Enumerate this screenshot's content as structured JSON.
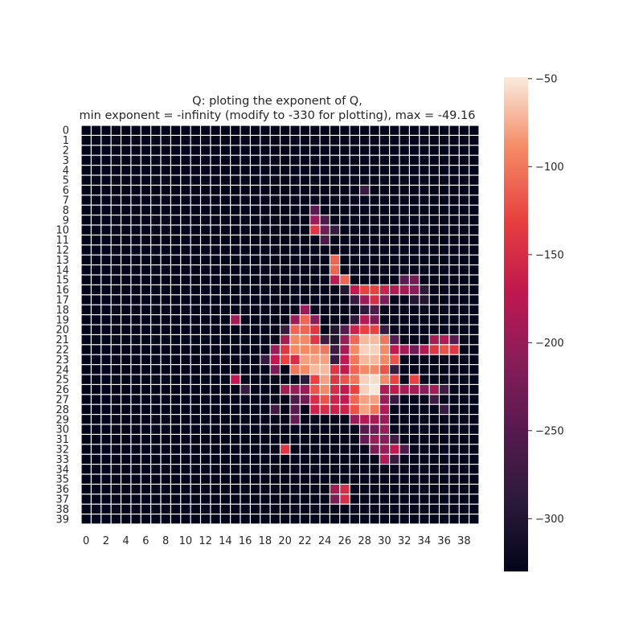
{
  "chart_data": {
    "type": "heatmap",
    "title_lines": [
      "Q: ploting the exponent of Q,",
      "min exponent = -infinity (modify to -330 for plotting), max = -49.16"
    ],
    "xlabel": "",
    "ylabel": "",
    "rows": 40,
    "cols": 40,
    "x_tick_labels": [
      "0",
      "2",
      "4",
      "6",
      "8",
      "10",
      "12",
      "14",
      "16",
      "18",
      "20",
      "22",
      "24",
      "26",
      "28",
      "30",
      "32",
      "34",
      "36",
      "38"
    ],
    "y_tick_labels": [
      "0",
      "1",
      "2",
      "3",
      "4",
      "5",
      "6",
      "7",
      "8",
      "9",
      "10",
      "11",
      "12",
      "13",
      "14",
      "15",
      "16",
      "17",
      "18",
      "19",
      "20",
      "21",
      "22",
      "23",
      "24",
      "25",
      "26",
      "27",
      "28",
      "29",
      "30",
      "31",
      "32",
      "33",
      "34",
      "35",
      "36",
      "37",
      "38",
      "39"
    ],
    "fill_value": -330,
    "vmin": -330,
    "vmax": -49.16,
    "colorbar": {
      "ticks": [
        -50,
        -100,
        -150,
        -200,
        -250,
        -300
      ],
      "tick_labels": [
        "−50",
        "−100",
        "−150",
        "−200",
        "−250",
        "−300"
      ],
      "colormap": "rocket"
    },
    "grid_line_color": "#ffffff",
    "cells": [
      [
        6,
        28,
        -280
      ],
      [
        8,
        23,
        -250
      ],
      [
        9,
        23,
        -200
      ],
      [
        9,
        24,
        -260
      ],
      [
        10,
        23,
        -140
      ],
      [
        10,
        24,
        -230
      ],
      [
        10,
        25,
        -280
      ],
      [
        11,
        24,
        -260
      ],
      [
        13,
        25,
        -110
      ],
      [
        14,
        25,
        -110
      ],
      [
        15,
        25,
        -170
      ],
      [
        15,
        26,
        -110
      ],
      [
        15,
        32,
        -250
      ],
      [
        15,
        33,
        -230
      ],
      [
        16,
        26,
        -300
      ],
      [
        16,
        27,
        -170
      ],
      [
        16,
        28,
        -130
      ],
      [
        16,
        29,
        -130
      ],
      [
        16,
        30,
        -160
      ],
      [
        16,
        31,
        -180
      ],
      [
        16,
        32,
        -190
      ],
      [
        16,
        33,
        -210
      ],
      [
        16,
        34,
        -290
      ],
      [
        17,
        27,
        -280
      ],
      [
        17,
        28,
        -200
      ],
      [
        17,
        29,
        -150
      ],
      [
        17,
        30,
        -220
      ],
      [
        17,
        33,
        -300
      ],
      [
        17,
        34,
        -300
      ],
      [
        18,
        22,
        -200
      ],
      [
        18,
        28,
        -290
      ],
      [
        18,
        29,
        -260
      ],
      [
        19,
        15,
        -190
      ],
      [
        19,
        21,
        -200
      ],
      [
        19,
        22,
        -110
      ],
      [
        19,
        23,
        -210
      ],
      [
        19,
        27,
        -290
      ],
      [
        19,
        28,
        -180
      ],
      [
        19,
        29,
        -220
      ],
      [
        20,
        20,
        -280
      ],
      [
        20,
        21,
        -110
      ],
      [
        20,
        22,
        -110
      ],
      [
        20,
        23,
        -140
      ],
      [
        20,
        25,
        -300
      ],
      [
        20,
        26,
        -250
      ],
      [
        20,
        27,
        -160
      ],
      [
        20,
        28,
        -130
      ],
      [
        20,
        29,
        -130
      ],
      [
        20,
        30,
        -280
      ],
      [
        21,
        20,
        -190
      ],
      [
        21,
        21,
        -90
      ],
      [
        21,
        22,
        -90
      ],
      [
        21,
        23,
        -140
      ],
      [
        21,
        24,
        -270
      ],
      [
        21,
        25,
        -300
      ],
      [
        21,
        26,
        -200
      ],
      [
        21,
        27,
        -110
      ],
      [
        21,
        28,
        -70
      ],
      [
        21,
        29,
        -70
      ],
      [
        21,
        30,
        -100
      ],
      [
        21,
        31,
        -250
      ],
      [
        21,
        35,
        -190
      ],
      [
        21,
        36,
        -180
      ],
      [
        21,
        37,
        -250
      ],
      [
        22,
        19,
        -200
      ],
      [
        22,
        20,
        -140
      ],
      [
        22,
        21,
        -90
      ],
      [
        22,
        22,
        -90
      ],
      [
        22,
        23,
        -90
      ],
      [
        22,
        24,
        -100
      ],
      [
        22,
        25,
        -270
      ],
      [
        22,
        26,
        -190
      ],
      [
        22,
        27,
        -90
      ],
      [
        22,
        28,
        -60
      ],
      [
        22,
        29,
        -60
      ],
      [
        22,
        30,
        -90
      ],
      [
        22,
        31,
        -170
      ],
      [
        22,
        32,
        -190
      ],
      [
        22,
        33,
        -230
      ],
      [
        22,
        34,
        -180
      ],
      [
        22,
        35,
        -140
      ],
      [
        22,
        36,
        -120
      ],
      [
        22,
        37,
        -140
      ],
      [
        23,
        18,
        -280
      ],
      [
        23,
        19,
        -170
      ],
      [
        23,
        20,
        -130
      ],
      [
        23,
        21,
        -150
      ],
      [
        23,
        22,
        -80
      ],
      [
        23,
        23,
        -80
      ],
      [
        23,
        24,
        -80
      ],
      [
        23,
        25,
        -280
      ],
      [
        23,
        26,
        -170
      ],
      [
        23,
        27,
        -100
      ],
      [
        23,
        28,
        -70
      ],
      [
        23,
        29,
        -70
      ],
      [
        23,
        30,
        -90
      ],
      [
        23,
        31,
        -120
      ],
      [
        24,
        19,
        -220
      ],
      [
        24,
        21,
        -100
      ],
      [
        24,
        22,
        -90
      ],
      [
        24,
        23,
        -70
      ],
      [
        24,
        24,
        -70
      ],
      [
        24,
        25,
        -140
      ],
      [
        24,
        26,
        -170
      ],
      [
        24,
        27,
        -110
      ],
      [
        24,
        28,
        -90
      ],
      [
        24,
        29,
        -90
      ],
      [
        24,
        30,
        -120
      ],
      [
        24,
        31,
        -280
      ],
      [
        25,
        15,
        -170
      ],
      [
        25,
        22,
        -290
      ],
      [
        25,
        23,
        -130
      ],
      [
        25,
        24,
        -80
      ],
      [
        25,
        25,
        -140
      ],
      [
        25,
        26,
        -120
      ],
      [
        25,
        27,
        -100
      ],
      [
        25,
        28,
        -60
      ],
      [
        25,
        29,
        -55
      ],
      [
        25,
        30,
        -90
      ],
      [
        25,
        31,
        -130
      ],
      [
        25,
        33,
        -130
      ],
      [
        26,
        16,
        -280
      ],
      [
        26,
        20,
        -190
      ],
      [
        26,
        21,
        -200
      ],
      [
        26,
        22,
        -200
      ],
      [
        26,
        23,
        -120
      ],
      [
        26,
        24,
        -90
      ],
      [
        26,
        25,
        -150
      ],
      [
        26,
        26,
        -170
      ],
      [
        26,
        27,
        -130
      ],
      [
        26,
        28,
        -60
      ],
      [
        26,
        29,
        -50
      ],
      [
        26,
        30,
        -180
      ],
      [
        26,
        31,
        -170
      ],
      [
        26,
        32,
        -190
      ],
      [
        26,
        33,
        -190
      ],
      [
        26,
        34,
        -210
      ],
      [
        26,
        35,
        -190
      ],
      [
        26,
        36,
        -270
      ],
      [
        27,
        21,
        -260
      ],
      [
        27,
        22,
        -230
      ],
      [
        27,
        23,
        -150
      ],
      [
        27,
        24,
        -120
      ],
      [
        27,
        25,
        -160
      ],
      [
        27,
        26,
        -170
      ],
      [
        27,
        27,
        -110
      ],
      [
        27,
        28,
        -80
      ],
      [
        27,
        29,
        -80
      ],
      [
        27,
        30,
        -200
      ],
      [
        27,
        31,
        -280
      ],
      [
        27,
        35,
        -270
      ],
      [
        28,
        19,
        -270
      ],
      [
        28,
        21,
        -250
      ],
      [
        28,
        23,
        -160
      ],
      [
        28,
        24,
        -150
      ],
      [
        28,
        25,
        -160
      ],
      [
        28,
        26,
        -160
      ],
      [
        28,
        27,
        -120
      ],
      [
        28,
        28,
        -80
      ],
      [
        28,
        29,
        -100
      ],
      [
        28,
        30,
        -180
      ],
      [
        28,
        36,
        -280
      ],
      [
        29,
        21,
        -240
      ],
      [
        29,
        27,
        -200
      ],
      [
        29,
        28,
        -180
      ],
      [
        29,
        29,
        -190
      ],
      [
        29,
        30,
        -200
      ],
      [
        30,
        28,
        -250
      ],
      [
        30,
        29,
        -230
      ],
      [
        30,
        30,
        -200
      ],
      [
        31,
        28,
        -240
      ],
      [
        31,
        29,
        -200
      ],
      [
        31,
        30,
        -210
      ],
      [
        31,
        31,
        -270
      ],
      [
        32,
        20,
        -140
      ],
      [
        32,
        29,
        -220
      ],
      [
        32,
        30,
        -200
      ],
      [
        32,
        31,
        -170
      ],
      [
        32,
        32,
        -260
      ],
      [
        33,
        30,
        -180
      ],
      [
        33,
        31,
        -280
      ],
      [
        36,
        25,
        -190
      ],
      [
        36,
        26,
        -150
      ],
      [
        37,
        25,
        -220
      ],
      [
        37,
        26,
        -150
      ]
    ]
  }
}
